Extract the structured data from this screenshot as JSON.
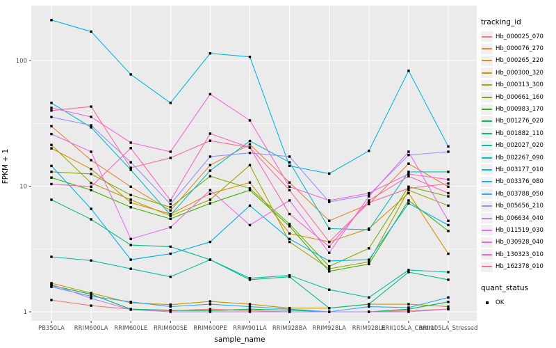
{
  "chart_data": {
    "type": "line",
    "title": "",
    "xlabel": "sample_name",
    "ylabel": "FPKM + 1",
    "y_scale": "log10",
    "ylim": [
      0.85,
      280
    ],
    "y_major_ticks": [
      1,
      10,
      100
    ],
    "y_minor_ticks": [
      3.1623,
      31.623
    ],
    "grid": true,
    "panel_bg": "#EBEBEB",
    "grid_color": "#FFFFFF",
    "point_shape": "filled-square",
    "point_color": "#000000",
    "legend_position": "right",
    "categories": [
      "PB350LA",
      "RRIM600LA",
      "RRIM600LE",
      "RRIM600SE",
      "RRIM600PE",
      "RRIM901LA",
      "RRIM928BA",
      "RRIM928LA",
      "RRIM928LE",
      "RRII105LA_Control",
      "RRII105LA_Stressed"
    ],
    "series": [
      {
        "name": "Hb_000025_070",
        "color": "#F8766D",
        "values": [
          1.24,
          1.12,
          1.05,
          1.02,
          1.05,
          1.02,
          1.0,
          1.0,
          1.0,
          1.02,
          1.05
        ]
      },
      {
        "name": "Hb_000076_270",
        "color": "#EA8331",
        "values": [
          30,
          16.1,
          9.9,
          6.4,
          14.7,
          21.5,
          10.7,
          5.3,
          7.2,
          15.1,
          9.9
        ]
      },
      {
        "name": "Hb_000265_220",
        "color": "#D89000",
        "values": [
          20,
          13.7,
          7.4,
          6.0,
          8.7,
          10.7,
          4.2,
          3.6,
          4.6,
          8.8,
          2.9
        ]
      },
      {
        "name": "Hb_000300_320",
        "color": "#C09B00",
        "values": [
          1.69,
          1.41,
          1.18,
          1.14,
          1.21,
          1.15,
          1.07,
          1.07,
          1.15,
          1.15,
          1.1
        ]
      },
      {
        "name": "Hb_000313_300",
        "color": "#A3A500",
        "values": [
          21.3,
          10.6,
          7.8,
          5.8,
          7.8,
          14.7,
          3.6,
          2.2,
          2.5,
          9.3,
          7.0
        ]
      },
      {
        "name": "Hb_000661_160",
        "color": "#7CAE00",
        "values": [
          13,
          12.5,
          8.5,
          6.8,
          12.0,
          9.6,
          5.0,
          2.3,
          3.2,
          9.9,
          8.3
        ]
      },
      {
        "name": "Hb_000983_170",
        "color": "#39B600",
        "values": [
          11.7,
          9.3,
          6.8,
          5.5,
          7.3,
          9.3,
          4.8,
          2.1,
          2.4,
          7.7,
          4.4
        ]
      },
      {
        "name": "Hb_001276_020",
        "color": "#00BB4E",
        "values": [
          1.62,
          1.38,
          1.05,
          1.03,
          1.02,
          1.05,
          1.03,
          1.0,
          1.0,
          1.05,
          1.2
        ]
      },
      {
        "name": "Hb_001882_110",
        "color": "#00BF7D",
        "values": [
          7.8,
          5.45,
          3.4,
          3.3,
          2.6,
          1.8,
          1.9,
          1.07,
          1.15,
          2.07,
          1.8
        ]
      },
      {
        "name": "Hb_002027_020",
        "color": "#00C1A3",
        "values": [
          2.74,
          2.56,
          2.2,
          1.9,
          2.6,
          1.85,
          1.95,
          1.5,
          1.3,
          2.15,
          2.07
        ]
      },
      {
        "name": "Hb_002267_090",
        "color": "#00BFC4",
        "values": [
          46,
          29.4,
          13.5,
          5.9,
          13.3,
          22.9,
          15.5,
          4.6,
          4.5,
          13,
          13
        ]
      },
      {
        "name": "Hb_003177_010",
        "color": "#00BAE0",
        "values": [
          210,
          170,
          77.5,
          46,
          114,
          107,
          14.5,
          12.6,
          19.1,
          83,
          20.7
        ]
      },
      {
        "name": "Hb_003376_080",
        "color": "#00B0F6",
        "values": [
          14.5,
          6.6,
          2.6,
          2.9,
          3.6,
          7.0,
          3.8,
          2.54,
          2.6,
          7.3,
          4.9
        ]
      },
      {
        "name": "Hb_003788_050",
        "color": "#35A2FF",
        "values": [
          1.58,
          1.33,
          1.2,
          1.1,
          1.15,
          1.1,
          1.05,
          1.0,
          1.1,
          1.08,
          1.3
        ]
      },
      {
        "name": "Hb_005656_210",
        "color": "#9590FF",
        "values": [
          35.5,
          30.5,
          15.5,
          7.2,
          17.2,
          18.4,
          17.2,
          7.5,
          8.5,
          17.7,
          18.8
        ]
      },
      {
        "name": "Hb_006634_040",
        "color": "#C77CFF",
        "values": [
          1.65,
          1.28,
          1.04,
          1.0,
          1.0,
          1.0,
          1.0,
          1.0,
          1.0,
          1.0,
          1.05
        ]
      },
      {
        "name": "Hb_011519_030",
        "color": "#E76BF3",
        "values": [
          26,
          18.8,
          3.8,
          4.7,
          9.3,
          4.9,
          7.7,
          2.95,
          8.3,
          18.8,
          5.3
        ]
      },
      {
        "name": "Hb_030928_040",
        "color": "#FA62DB",
        "values": [
          42,
          35.6,
          22.2,
          18.8,
          54,
          33.4,
          9.9,
          7.7,
          8.8,
          12.5,
          11.3
        ]
      },
      {
        "name": "Hb_130323_010",
        "color": "#FF62BC",
        "values": [
          10.4,
          9.9,
          20.1,
          7.7,
          26.2,
          20.3,
          6.0,
          3.3,
          7.7,
          12,
          8.8
        ]
      },
      {
        "name": "Hb_162378_010",
        "color": "#FF6A98",
        "values": [
          40,
          43,
          14,
          16.8,
          23,
          20.3,
          9.3,
          3.6,
          7.4,
          9.6,
          10.5
        ]
      }
    ],
    "legend": {
      "color_title": "tracking_id",
      "shape_title": "quant_status",
      "shape_label": "OK"
    }
  },
  "axis_text_color": "#4D4D4D"
}
